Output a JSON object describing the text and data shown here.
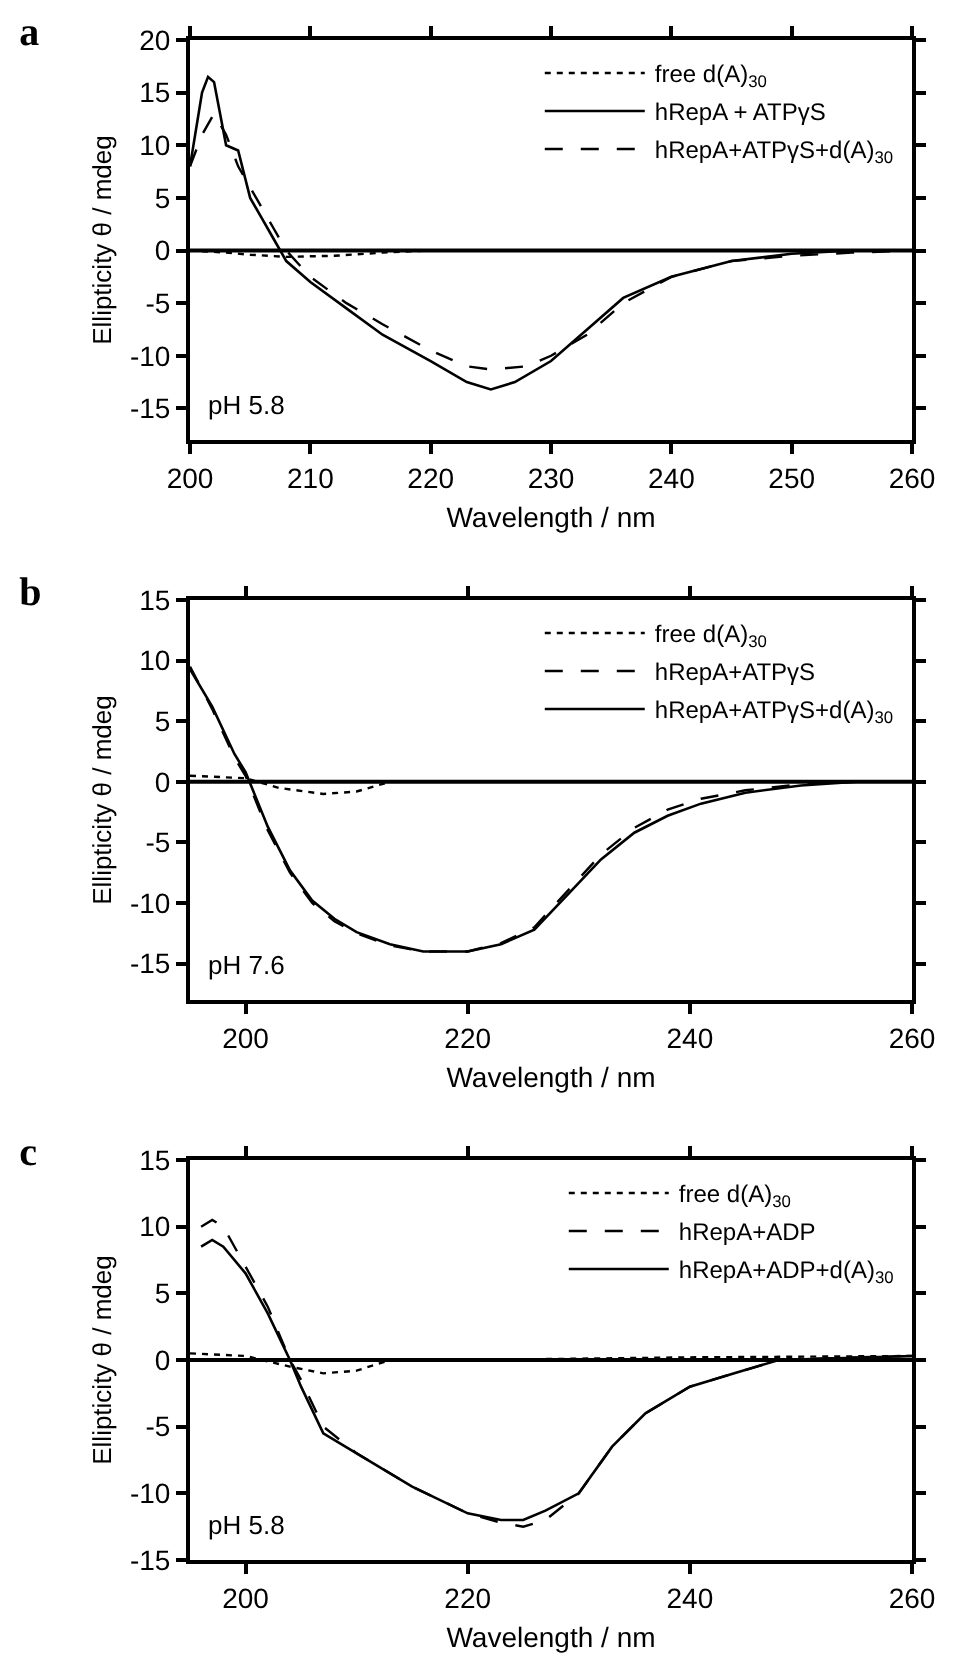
{
  "chart_data": [
    {
      "type": "line",
      "title": "a",
      "xlabel": "Wavelength / nm",
      "ylabel": "Ellipticity θ / mdeg",
      "xlim": [
        200,
        260
      ],
      "ylim": [
        -18,
        20
      ],
      "xticks": [
        200,
        210,
        220,
        230,
        240,
        250,
        260
      ],
      "yticks": [
        -15,
        -10,
        -5,
        0,
        5,
        10,
        15,
        20
      ],
      "legend": "top right",
      "grid": false,
      "annotations": [
        "pH 5.8"
      ],
      "ref_lines": [
        {
          "axis": "y",
          "value": 0,
          "color": "#000000"
        }
      ],
      "series": [
        {
          "name": "free d(A)$_{30}$",
          "color": "#000000",
          "line_style": "dotted",
          "x": [
            200,
            203,
            205,
            208,
            212,
            216,
            220,
            230,
            240,
            250,
            260
          ],
          "values": [
            0,
            -0.2,
            -0.4,
            -0.6,
            -0.5,
            -0.2,
            0,
            0,
            0,
            0,
            0
          ]
        },
        {
          "name": "hRepA + ATPγS",
          "color": "#000000",
          "line_style": "solid",
          "x": [
            200,
            201,
            201.5,
            202,
            203,
            204,
            205,
            206,
            207,
            208,
            210,
            213,
            216,
            220,
            223,
            225,
            227,
            230,
            233,
            236,
            240,
            245,
            250,
            255,
            260
          ],
          "values": [
            8,
            15,
            16.5,
            16,
            10,
            9.5,
            5,
            3,
            1,
            -1,
            -3,
            -5.5,
            -8,
            -10.5,
            -12.5,
            -13.2,
            -12.5,
            -10.5,
            -7.5,
            -4.5,
            -2.5,
            -1,
            -0.3,
            0,
            0
          ]
        },
        {
          "name": "hRepA+ATPγS+d(A)$_{30}$",
          "color": "#000000",
          "line_style": "dashed",
          "x": [
            200,
            201,
            202,
            203,
            204,
            205,
            206,
            207,
            208,
            210,
            213,
            216,
            220,
            223,
            225,
            228,
            230,
            233,
            236,
            240,
            245,
            250,
            255,
            260
          ],
          "values": [
            8,
            11,
            13,
            11,
            8,
            6,
            4,
            2,
            0,
            -2.5,
            -5,
            -7,
            -9.5,
            -11,
            -11.3,
            -11,
            -10,
            -8,
            -5,
            -2.5,
            -1,
            -0.5,
            -0.2,
            0
          ]
        }
      ]
    },
    {
      "type": "line",
      "title": "b",
      "xlabel": "Wavelength / nm",
      "ylabel": "Ellipticity θ / mdeg",
      "xlim": [
        195,
        260
      ],
      "ylim": [
        -18,
        15
      ],
      "xticks": [
        200,
        220,
        240,
        260
      ],
      "yticks": [
        -15,
        -10,
        -5,
        0,
        5,
        10,
        15
      ],
      "legend": "top right",
      "grid": false,
      "annotations": [
        "pH 7.6"
      ],
      "ref_lines": [
        {
          "axis": "y",
          "value": 0,
          "color": "#000000"
        }
      ],
      "series": [
        {
          "name": "free d(A)$_{30}$",
          "color": "#000000",
          "line_style": "dotted",
          "x": [
            195,
            200,
            203,
            207,
            210,
            213,
            220,
            240,
            260
          ],
          "values": [
            0.5,
            0.3,
            -0.5,
            -1,
            -0.8,
            0,
            0,
            0,
            0
          ]
        },
        {
          "name": "hRepA+ATPγS",
          "color": "#000000",
          "line_style": "dashed",
          "x": [
            195,
            197,
            199,
            200,
            202,
            204,
            206,
            208,
            210,
            213,
            216,
            220,
            223,
            226,
            229,
            232,
            235,
            238,
            241,
            245,
            250,
            255,
            260
          ],
          "values": [
            9.5,
            6,
            2,
            0.5,
            -4,
            -7.5,
            -10,
            -11.5,
            -12.5,
            -13.5,
            -14,
            -14,
            -13.3,
            -12,
            -9,
            -6,
            -3.8,
            -2.3,
            -1.4,
            -0.7,
            -0.2,
            0,
            0
          ]
        },
        {
          "name": "hRepA+ATPγS+d(A)$_{30}$",
          "color": "#000000",
          "line_style": "solid",
          "x": [
            195,
            197,
            199,
            200,
            202,
            204,
            206,
            208,
            210,
            213,
            216,
            220,
            223,
            226,
            229,
            232,
            235,
            238,
            241,
            245,
            250,
            255,
            260
          ],
          "values": [
            9.3,
            6.2,
            2.3,
            0.8,
            -3.7,
            -7.3,
            -9.8,
            -11.3,
            -12.4,
            -13.4,
            -14,
            -14,
            -13.4,
            -12.2,
            -9.3,
            -6.4,
            -4.2,
            -2.8,
            -1.8,
            -0.9,
            -0.3,
            0,
            0
          ]
        }
      ]
    },
    {
      "type": "line",
      "title": "c",
      "xlabel": "Wavelength / nm",
      "ylabel": "Ellipticity θ / mdeg",
      "xlim": [
        195,
        260
      ],
      "ylim": [
        -15,
        15
      ],
      "xticks": [
        200,
        220,
        240,
        260
      ],
      "yticks": [
        -15,
        -10,
        -5,
        0,
        5,
        10,
        15
      ],
      "legend": "top right",
      "grid": false,
      "annotations": [
        "pH 5.8"
      ],
      "ref_lines": [
        {
          "axis": "y",
          "value": 0,
          "color": "#000000"
        }
      ],
      "series": [
        {
          "name": "free d(A)$_{30}$",
          "color": "#000000",
          "line_style": "dotted",
          "x": [
            195,
            200,
            204,
            207,
            210,
            213,
            220,
            240,
            260
          ],
          "values": [
            0.5,
            0.3,
            -0.5,
            -1,
            -0.8,
            0,
            0,
            0.2,
            0.3
          ]
        },
        {
          "name": "hRepA+ADP",
          "color": "#000000",
          "line_style": "dashed",
          "x": [
            196,
            197,
            198,
            200,
            202,
            203,
            204,
            205,
            207,
            210,
            215,
            220,
            223,
            225,
            227,
            230,
            233,
            236,
            240,
            244,
            248,
            255,
            260
          ],
          "values": [
            10,
            10.5,
            10,
            7,
            4,
            2,
            0,
            -1.5,
            -5,
            -7,
            -9.5,
            -11.5,
            -12.2,
            -12.5,
            -12,
            -10,
            -6.5,
            -4,
            -2,
            -1,
            0,
            0.2,
            0.3
          ]
        },
        {
          "name": "hRepA+ADP+d(A)$_{30}$",
          "color": "#000000",
          "line_style": "solid",
          "x": [
            196,
            197,
            198,
            200,
            202,
            204,
            205,
            207,
            210,
            215,
            220,
            223,
            225,
            227,
            230,
            233,
            236,
            240,
            244,
            248,
            260
          ],
          "values": [
            8.5,
            9,
            8.5,
            6.5,
            3.5,
            0,
            -2,
            -5.5,
            -7,
            -9.5,
            -11.5,
            -12,
            -12,
            -11.3,
            -10,
            -6.5,
            -4,
            -2,
            -1,
            0,
            0.3
          ]
        }
      ]
    }
  ]
}
